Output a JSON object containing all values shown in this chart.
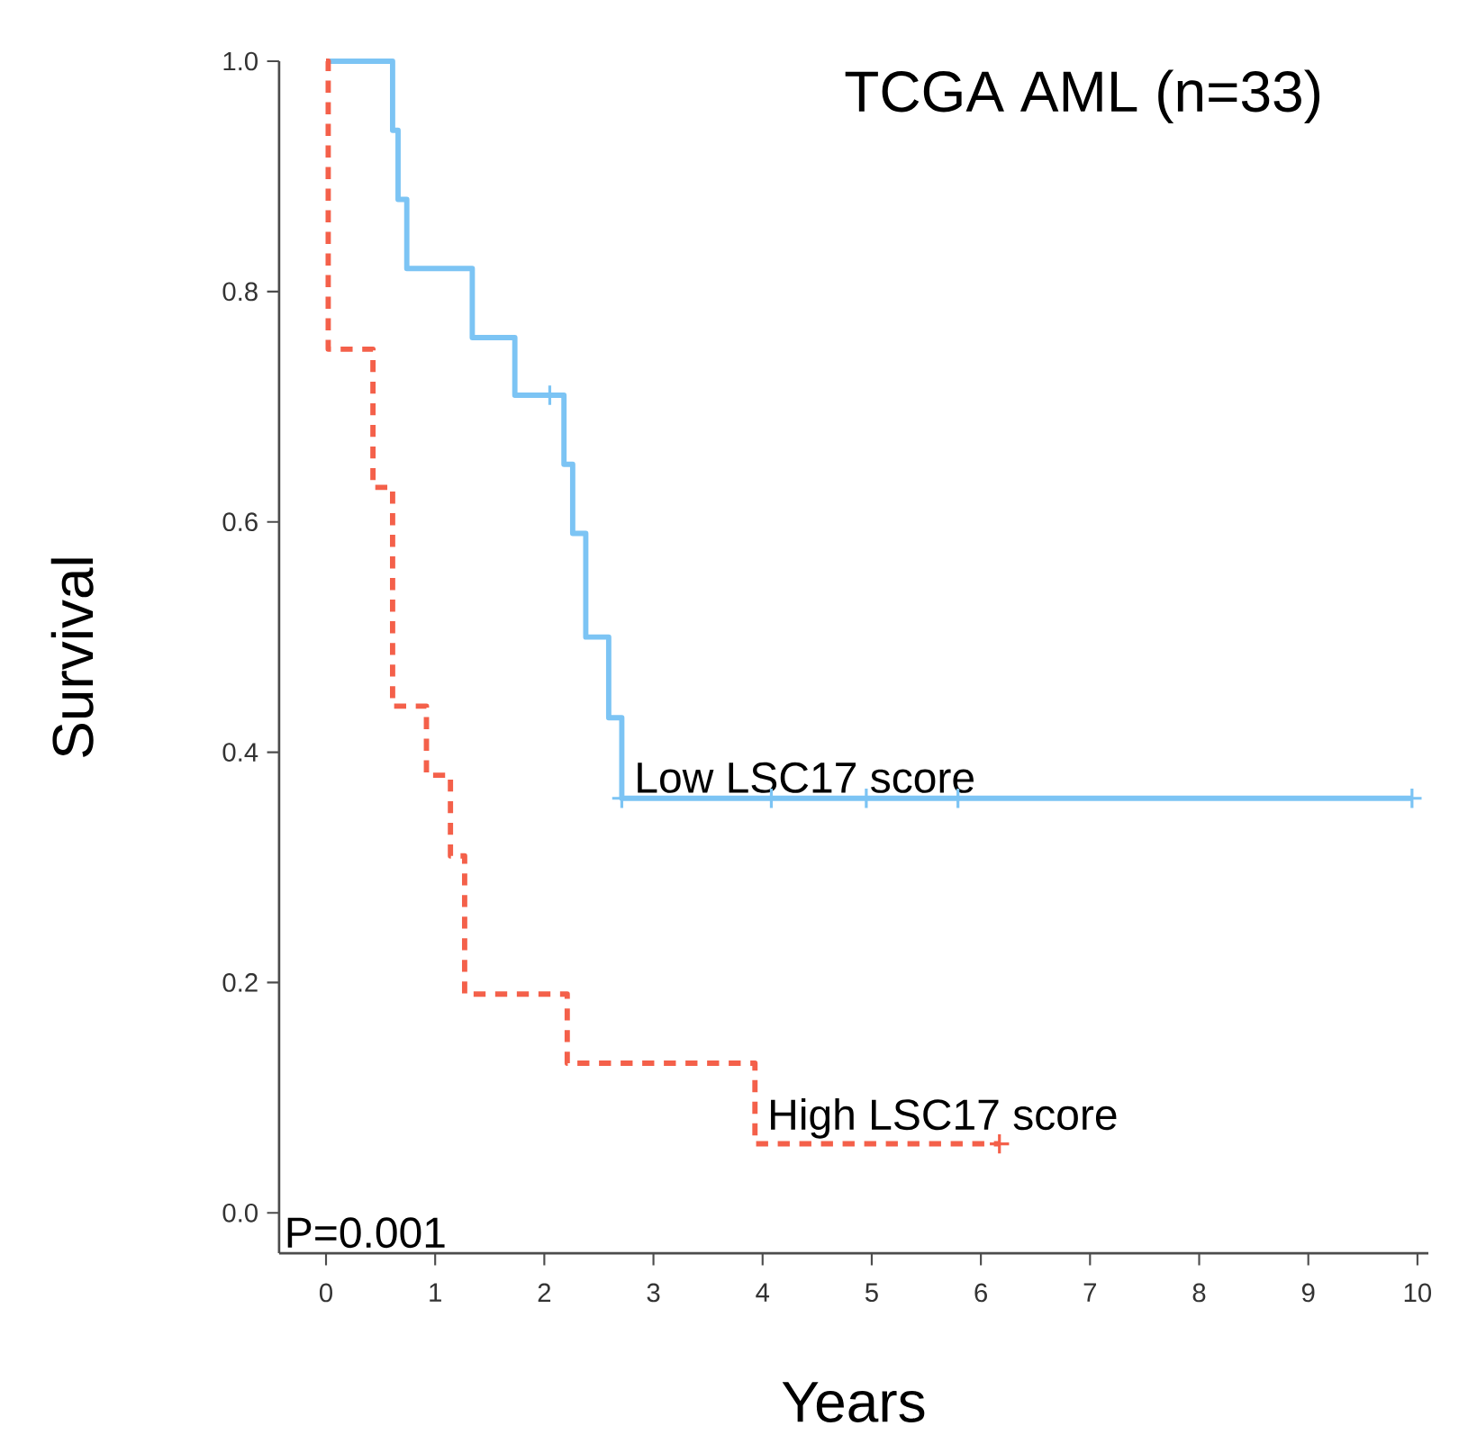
{
  "chart_data": {
    "type": "step",
    "title": "TCGA AML (n=33)",
    "xlabel": "Years",
    "ylabel": "Survival",
    "xlim": [
      -0.43,
      10.1
    ],
    "ylim": [
      -0.035,
      1.0
    ],
    "xticks": [
      0,
      1,
      2,
      3,
      4,
      5,
      6,
      7,
      8,
      9,
      10
    ],
    "yticks": [
      {
        "value": 0,
        "label": "0.0"
      },
      {
        "value": 0.2,
        "label": "0.2"
      },
      {
        "value": 0.4,
        "label": "0.4"
      },
      {
        "value": 0.6,
        "label": "0.6"
      },
      {
        "value": 0.8,
        "label": "0.8"
      },
      {
        "value": 1.0,
        "label": "1.0"
      }
    ],
    "grid": false,
    "legend": false,
    "annotations": [
      "P=0.001"
    ],
    "series": [
      {
        "name": "Low LSC17 score",
        "color": "#7cc4f4",
        "line_style": "solid",
        "x": [
          0,
          0.61,
          0.66,
          0.74,
          1.34,
          1.73,
          2.18,
          2.26,
          2.38,
          2.59,
          2.71,
          9.95
        ],
        "values": [
          1.0,
          0.94,
          0.88,
          0.82,
          0.76,
          0.71,
          0.65,
          0.59,
          0.5,
          0.43,
          0.36,
          0.36
        ]
      },
      {
        "name": "High LSC17 score",
        "color": "#f4604a",
        "line_style": "dashed",
        "x": [
          0,
          0.02,
          0.43,
          0.61,
          0.92,
          1.14,
          1.27,
          2.21,
          3.93,
          6.17
        ],
        "values": [
          1.0,
          0.75,
          0.63,
          0.44,
          0.38,
          0.31,
          0.19,
          0.13,
          0.06,
          0.06
        ]
      },
      {
        "type": "scatter",
        "marker": "cross",
        "color": "#7cc4f4",
        "x": [
          2.05,
          2.71,
          4.08,
          4.95,
          5.79,
          9.95
        ],
        "values": [
          0.71,
          0.36,
          0.36,
          0.36,
          0.36,
          0.36
        ]
      },
      {
        "type": "scatter",
        "marker": "cross",
        "color": "#f4604a",
        "x": [
          6.17
        ],
        "values": [
          0.06
        ]
      }
    ]
  }
}
